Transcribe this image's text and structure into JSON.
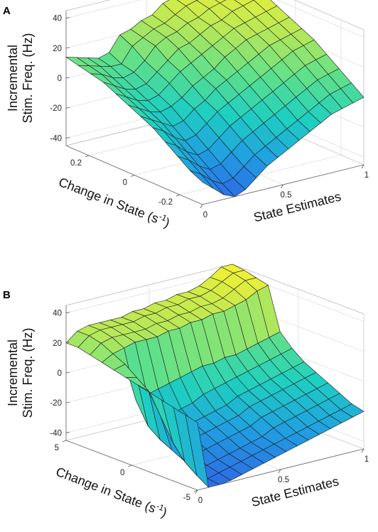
{
  "chart_data": [
    {
      "type": "surface",
      "panel": "A",
      "zlabel_line1": "Incremental",
      "zlabel_line2": "Stim. Freq. (Hz)",
      "ylabel": "Change in State (s",
      "ylabel_sup": "-1",
      "ylabel_close": ")",
      "xlabel": "State Estimates",
      "xlim": [
        0,
        1
      ],
      "ylim": [
        -0.3,
        0.3
      ],
      "zlim": [
        -45,
        45
      ],
      "xticks": [
        "0",
        "0.5",
        "1"
      ],
      "yticks": [
        "-0.2",
        "0",
        "0.2"
      ],
      "zticks": [
        "-40",
        "-20",
        "0",
        "20",
        "40"
      ],
      "colormap": [
        "#2d6be6",
        "#20a0e0",
        "#1fcfc0",
        "#5fe08a",
        "#b8e858",
        "#f2f034"
      ],
      "grid": true,
      "z_grid_note": "rows = Change in State (from +0.3 to -0.3), columns = State Estimates (from 0 to 1)",
      "z": [
        [
          14,
          12,
          10,
          8,
          10,
          20,
          22,
          26,
          28,
          34,
          36,
          38,
          40,
          45,
          45,
          45
        ],
        [
          12,
          10,
          8,
          6,
          6,
          16,
          20,
          24,
          26,
          30,
          34,
          36,
          38,
          42,
          44,
          44
        ],
        [
          10,
          8,
          4,
          2,
          4,
          10,
          18,
          22,
          24,
          28,
          30,
          34,
          36,
          38,
          40,
          42
        ],
        [
          8,
          4,
          0,
          -2,
          0,
          6,
          12,
          18,
          20,
          24,
          28,
          30,
          34,
          36,
          38,
          40
        ],
        [
          4,
          0,
          -4,
          -6,
          -4,
          2,
          8,
          12,
          16,
          20,
          24,
          28,
          30,
          32,
          34,
          36
        ],
        [
          0,
          -4,
          -8,
          -10,
          -8,
          -4,
          2,
          6,
          10,
          16,
          20,
          24,
          26,
          28,
          30,
          32
        ],
        [
          -4,
          -8,
          -12,
          -16,
          -14,
          -8,
          -4,
          2,
          6,
          10,
          14,
          18,
          22,
          24,
          26,
          28
        ],
        [
          -8,
          -12,
          -18,
          -22,
          -20,
          -14,
          -8,
          -4,
          0,
          4,
          8,
          12,
          16,
          20,
          22,
          24
        ],
        [
          -14,
          -18,
          -24,
          -28,
          -26,
          -20,
          -14,
          -10,
          -6,
          -2,
          2,
          6,
          10,
          14,
          16,
          18
        ],
        [
          -20,
          -24,
          -30,
          -34,
          -32,
          -26,
          -20,
          -16,
          -12,
          -8,
          -4,
          0,
          4,
          8,
          10,
          12
        ],
        [
          -26,
          -30,
          -36,
          -40,
          -38,
          -32,
          -26,
          -22,
          -18,
          -14,
          -10,
          -6,
          -2,
          2,
          4,
          6
        ],
        [
          -30,
          -36,
          -42,
          -45,
          -42,
          -36,
          -30,
          -26,
          -22,
          -18,
          -14,
          -10,
          -6,
          -4,
          -2,
          0
        ]
      ]
    },
    {
      "type": "surface",
      "panel": "B",
      "zlabel_line1": "Incremental",
      "zlabel_line2": "Stim. Freq. (Hz)",
      "ylabel": "Change in State (s",
      "ylabel_sup": "-1",
      "ylabel_close": ")",
      "xlabel": "State Estimates",
      "xlim": [
        0,
        1
      ],
      "ylim": [
        -5,
        5
      ],
      "zlim": [
        -45,
        45
      ],
      "xticks": [
        "0",
        "0.5",
        "1"
      ],
      "yticks": [
        "-5",
        "0",
        "5"
      ],
      "zticks": [
        "-40",
        "-20",
        "0",
        "20",
        "40"
      ],
      "colormap": [
        "#2d6be6",
        "#20a0e0",
        "#1fcfc0",
        "#5fe08a",
        "#b8e858",
        "#f2f034"
      ],
      "grid": true,
      "z_grid_note": "rows = Change in State (from +5 to -5), columns = State Estimates (from 0 to 1)",
      "z": [
        [
          20,
          26,
          28,
          28,
          28,
          28,
          30,
          30,
          32,
          32,
          34,
          34,
          36,
          40,
          45,
          45
        ],
        [
          20,
          26,
          28,
          28,
          28,
          28,
          30,
          30,
          32,
          32,
          34,
          34,
          36,
          40,
          44,
          44
        ],
        [
          18,
          24,
          26,
          26,
          26,
          26,
          28,
          28,
          30,
          30,
          32,
          32,
          34,
          38,
          42,
          42
        ],
        [
          16,
          20,
          22,
          24,
          24,
          24,
          26,
          26,
          28,
          28,
          30,
          30,
          32,
          34,
          38,
          40
        ],
        [
          14,
          16,
          -10,
          -8,
          -6,
          -4,
          -2,
          0,
          2,
          2,
          4,
          4,
          6,
          8,
          10,
          12
        ],
        [
          12,
          10,
          -24,
          -22,
          -20,
          -18,
          -16,
          -12,
          -10,
          -8,
          -6,
          -4,
          -2,
          0,
          2,
          4
        ],
        [
          10,
          4,
          -30,
          -28,
          -26,
          -24,
          -22,
          -20,
          -18,
          -14,
          -12,
          -10,
          -8,
          -6,
          -4,
          -2
        ],
        [
          8,
          -10,
          -34,
          -32,
          -30,
          -28,
          -26,
          -24,
          -22,
          -18,
          -16,
          -14,
          -12,
          -10,
          -8,
          -6
        ],
        [
          6,
          -24,
          -38,
          -36,
          -34,
          -32,
          -30,
          -28,
          -26,
          -22,
          -20,
          -18,
          -16,
          -14,
          -12,
          -10
        ],
        [
          4,
          -34,
          -42,
          -40,
          -38,
          -36,
          -34,
          -32,
          -30,
          -26,
          -24,
          -22,
          -20,
          -18,
          -16,
          -14
        ],
        [
          2,
          -40,
          -44,
          -42,
          -40,
          -38,
          -36,
          -34,
          -32,
          -30,
          -28,
          -26,
          -24,
          -22,
          -20,
          -18
        ],
        [
          0,
          -45,
          -45,
          -44,
          -42,
          -40,
          -38,
          -36,
          -34,
          -32,
          -30,
          -28,
          -26,
          -24,
          -22,
          -20
        ]
      ]
    }
  ]
}
